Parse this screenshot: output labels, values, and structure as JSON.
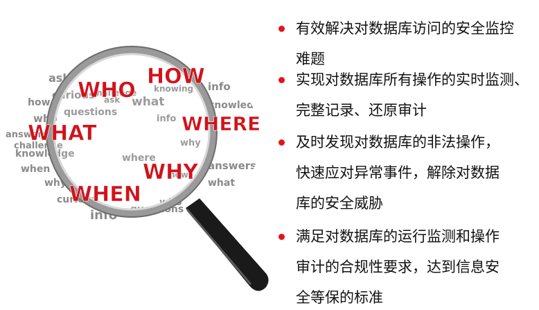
{
  "colors": {
    "bullet": "#e3141b",
    "text": "#111111",
    "word_red": "#d0131b",
    "word_gray": "#8a8a8a",
    "lens_rim": "#9a9a9a",
    "handle": "#1a1a1a"
  },
  "word_cloud": {
    "red_words": [
      "WHO",
      "HOW",
      "WHAT",
      "WHERE",
      "WHY",
      "WHEN"
    ],
    "gray_words": [
      "ask",
      "curious",
      "how",
      "who",
      "questions",
      "challenge",
      "what",
      "info",
      "knowing",
      "answers",
      "knowledge",
      "when",
      "where",
      "why",
      "ask",
      "curious",
      "info",
      "who",
      "questions",
      "how",
      "why",
      "challenge",
      "knowledge",
      "answers",
      "what",
      "info"
    ]
  },
  "bullets": [
    {
      "lines": [
        "有效解决对数据库访问的安全监控",
        "难题"
      ]
    },
    {
      "lines": [
        "实现对数据库所有操作的实时监测、",
        "完整记录、还原审计"
      ]
    },
    {
      "lines": [
        "及时发现对数据库的非法操作，",
        "快速应对异常事件，解除对数据",
        "库的安全威胁"
      ]
    },
    {
      "lines": [
        "满足对数据库的运行监测和操作",
        "审计的合规性要求，达到信息安",
        "全等保的标准"
      ]
    }
  ]
}
